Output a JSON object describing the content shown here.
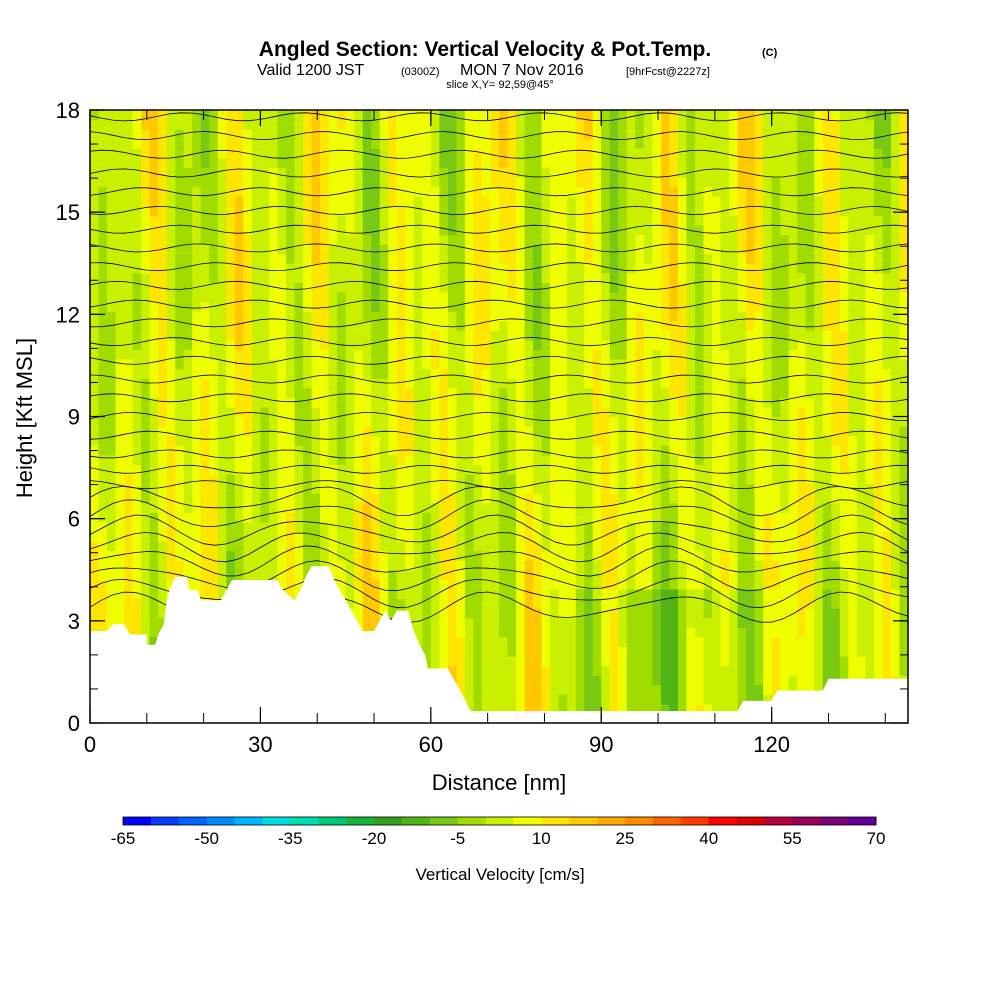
{
  "header": {
    "title_main": "Angled Section: Vertical Velocity & Pot.Temp.",
    "title_copyright": "(C)",
    "valid_a": "Valid 1200 JST",
    "valid_b": "(0300Z)",
    "valid_c": "MON 7 Nov 2016",
    "valid_d": "[9hrFcst@2227z]",
    "slice": "slice X,Y= 92,59@45°"
  },
  "chart_data": {
    "type": "heatmap",
    "xlabel": "Distance [nm]",
    "ylabel": "Height [Kft MSL]",
    "xlim": [
      0,
      144
    ],
    "ylim": [
      0,
      18
    ],
    "x_ticks": [
      0,
      30,
      60,
      90,
      120
    ],
    "y_ticks": [
      0,
      3,
      6,
      9,
      12,
      15,
      18
    ],
    "colorbar": {
      "title": "Vertical Velocity [cm/s]",
      "tick_labels": [
        "-65",
        "-50",
        "-35",
        "-20",
        "-5",
        "10",
        "25",
        "40",
        "55",
        "70"
      ],
      "tick_values": [
        -65,
        -50,
        -35,
        -20,
        -5,
        10,
        25,
        40,
        55,
        70
      ],
      "colors": [
        "#0000ff",
        "#0a3cff",
        "#0064ff",
        "#008cff",
        "#00b4ff",
        "#00dcdc",
        "#00dcaa",
        "#00c878",
        "#19b43c",
        "#32a01e",
        "#50b414",
        "#78c814",
        "#a0dc00",
        "#c8f000",
        "#f0ff00",
        "#ffe600",
        "#ffc800",
        "#ffaa00",
        "#ff8c00",
        "#ff6400",
        "#ff3c00",
        "#ff0000",
        "#dc0000",
        "#b4003c",
        "#96005a",
        "#780078",
        "#640096"
      ]
    },
    "terrain_kft": [
      [
        0,
        2.7
      ],
      [
        3,
        2.7
      ],
      [
        4,
        2.9
      ],
      [
        6,
        2.9
      ],
      [
        7,
        2.6
      ],
      [
        10,
        2.6
      ],
      [
        10,
        2.3
      ],
      [
        11.5,
        2.3
      ],
      [
        12,
        2.6
      ],
      [
        13,
        2.9
      ],
      [
        13.5,
        3.6
      ],
      [
        14,
        3.9
      ],
      [
        15,
        4.3
      ],
      [
        17,
        4.3
      ],
      [
        17.5,
        3.9
      ],
      [
        19,
        3.9
      ],
      [
        19.5,
        3.6
      ],
      [
        23,
        3.6
      ],
      [
        24,
        3.9
      ],
      [
        25,
        4.2
      ],
      [
        33,
        4.2
      ],
      [
        34,
        3.9
      ],
      [
        36,
        3.6
      ],
      [
        37,
        3.9
      ],
      [
        38,
        4.3
      ],
      [
        39,
        4.6
      ],
      [
        42,
        4.6
      ],
      [
        43,
        4.2
      ],
      [
        44,
        3.9
      ],
      [
        45,
        3.6
      ],
      [
        46,
        3.3
      ],
      [
        47,
        3.0
      ],
      [
        48,
        2.7
      ],
      [
        50,
        2.7
      ],
      [
        51,
        3.0
      ],
      [
        52,
        3.3
      ],
      [
        53,
        3.0
      ],
      [
        54,
        3.3
      ],
      [
        56,
        3.3
      ],
      [
        57,
        2.7
      ],
      [
        58,
        2.3
      ],
      [
        59,
        2.0
      ],
      [
        59.5,
        1.6
      ],
      [
        63,
        1.6
      ],
      [
        64,
        1.3
      ],
      [
        65,
        1.0
      ],
      [
        66,
        0.7
      ],
      [
        67,
        0.35
      ],
      [
        114,
        0.35
      ],
      [
        115,
        0.65
      ],
      [
        120,
        0.65
      ],
      [
        121,
        0.95
      ],
      [
        129,
        0.95
      ],
      [
        130,
        1.3
      ],
      [
        144,
        1.3
      ]
    ]
  }
}
